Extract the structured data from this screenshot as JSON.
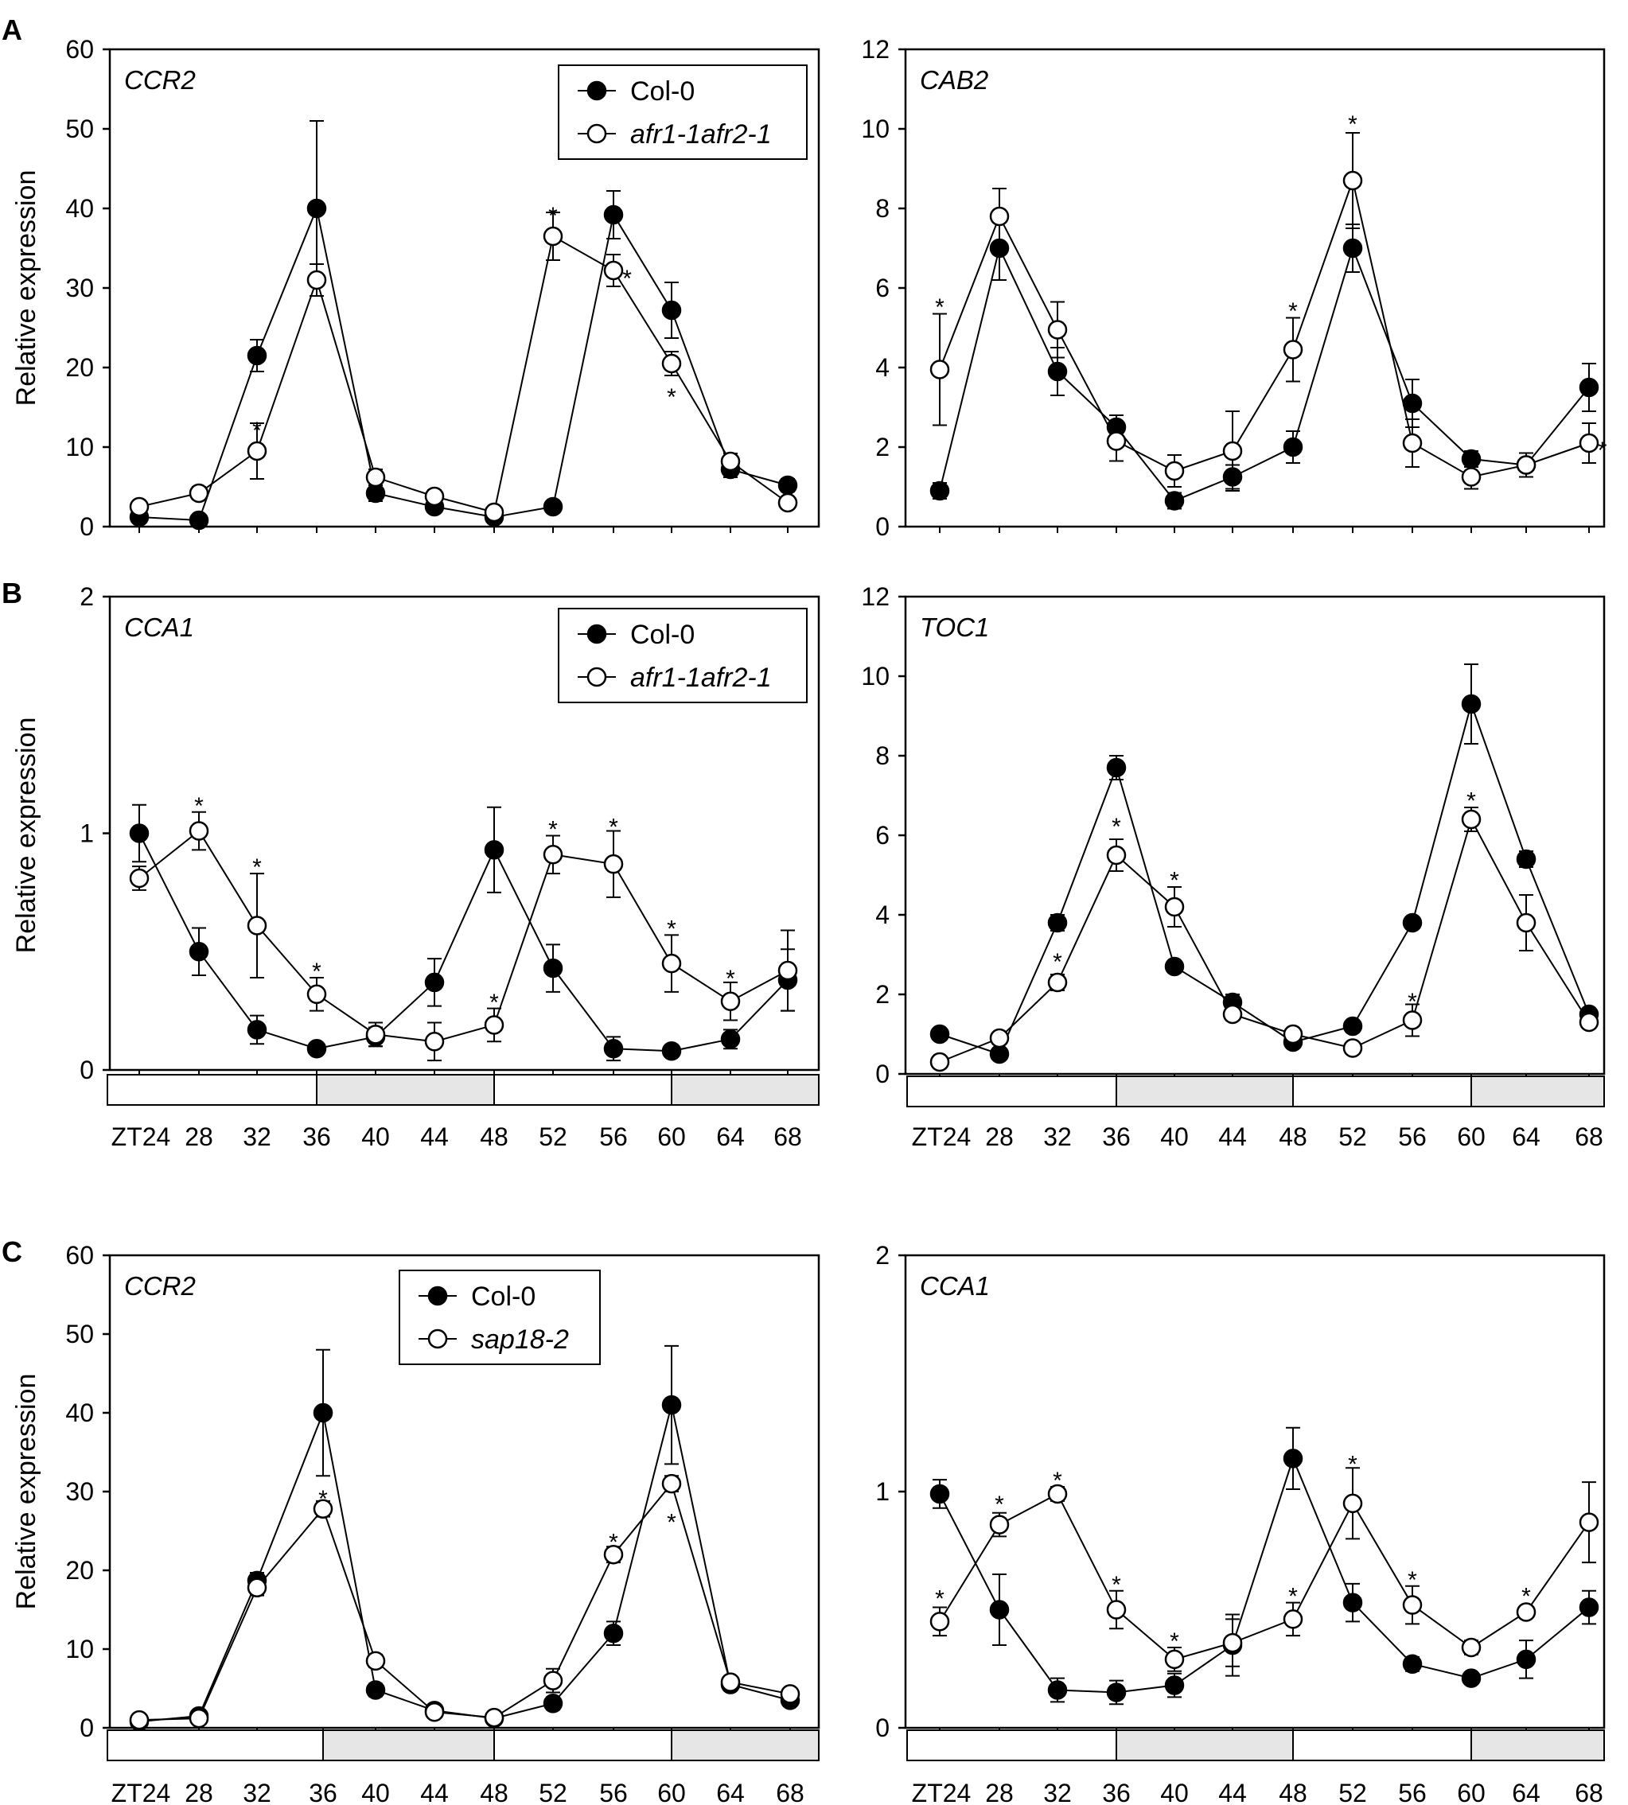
{
  "panel_labels": [
    "A",
    "B",
    "C"
  ],
  "ylabel": "Relative expression",
  "x_ticks": [
    "ZT24",
    "28",
    "32",
    "36",
    "40",
    "44",
    "48",
    "52",
    "56",
    "60",
    "64",
    "68"
  ],
  "legends": {
    "afr": [
      "Col-0",
      "afr1-1afr2-1"
    ],
    "sap": [
      "Col-0",
      "sap18-2"
    ]
  },
  "colors": {
    "filled": "#000000",
    "open": "#ffffff",
    "dark_period": "#e6e6e6",
    "light_period": "#ffffff"
  },
  "chart_data": [
    {
      "type": "line",
      "panel": "A",
      "title": "CCR2",
      "x": [
        24,
        28,
        32,
        36,
        40,
        44,
        48,
        52,
        56,
        60,
        64,
        68
      ],
      "ylim": [
        0,
        60
      ],
      "yticks": [
        0,
        10,
        20,
        30,
        40,
        50,
        60
      ],
      "xlabel": "",
      "ylabel": "Relative expression",
      "series": [
        {
          "name": "Col-0",
          "values": [
            1.2,
            0.8,
            21.5,
            40,
            4.2,
            2.5,
            1.2,
            2.5,
            39.2,
            27.2,
            7.2,
            5.2
          ],
          "errors": [
            0.5,
            0.4,
            2,
            11,
            1,
            0.6,
            0.5,
            0.6,
            3,
            3.5,
            1,
            0.8
          ]
        },
        {
          "name": "afr1-1afr2-1",
          "values": [
            2.5,
            4.2,
            9.5,
            31,
            6.2,
            3.8,
            1.8,
            36.5,
            32.2,
            20.5,
            8.2,
            3
          ],
          "errors": [
            0.6,
            0.8,
            3.5,
            2,
            1,
            0.8,
            0.5,
            3,
            2,
            1.5,
            1,
            0.6
          ]
        }
      ],
      "stars": [
        {
          "x": 32,
          "y": 12.5,
          "text": "*"
        },
        {
          "x": 52,
          "y": 39.5,
          "text": "*"
        },
        {
          "x": 57.1,
          "y": 31.6,
          "text": "*"
        },
        {
          "x": 60,
          "y": 16.7,
          "text": "*"
        }
      ]
    },
    {
      "type": "line",
      "panel": "A",
      "title": "CAB2",
      "x": [
        24,
        28,
        32,
        36,
        40,
        44,
        48,
        52,
        56,
        60,
        64,
        68
      ],
      "ylim": [
        0,
        12
      ],
      "yticks": [
        0,
        2,
        4,
        6,
        8,
        10,
        12
      ],
      "xlabel": "",
      "ylabel": "",
      "series": [
        {
          "name": "Col-0",
          "values": [
            0.9,
            7,
            3.9,
            2.5,
            0.65,
            1.25,
            2,
            7,
            3.1,
            1.7,
            1.55,
            3.5
          ],
          "errors": [
            0.2,
            0.8,
            0.6,
            0.3,
            0.2,
            0.3,
            0.4,
            0.6,
            0.6,
            0.2,
            0.3,
            0.6
          ]
        },
        {
          "name": "afr1-1afr2-1",
          "values": [
            3.95,
            7.8,
            4.95,
            2.15,
            1.4,
            1.9,
            4.45,
            8.7,
            2.1,
            1.25,
            1.55,
            2.1
          ],
          "errors": [
            1.4,
            0.7,
            0.7,
            0.5,
            0.4,
            1,
            0.8,
            1.2,
            0.6,
            0.3,
            0.3,
            0.5
          ]
        }
      ],
      "stars": [
        {
          "x": 24,
          "y": 5.6,
          "text": "*"
        },
        {
          "x": 48,
          "y": 5.5,
          "text": "*"
        },
        {
          "x": 52,
          "y": 10.2,
          "text": "*"
        },
        {
          "x": 68.9,
          "y": 2,
          "text": "*"
        }
      ]
    },
    {
      "type": "line",
      "panel": "B",
      "title": "CCA1",
      "x": [
        24,
        28,
        32,
        36,
        40,
        44,
        48,
        52,
        56,
        60,
        64,
        68
      ],
      "ylim": [
        0,
        2
      ],
      "yticks": [
        0,
        1,
        2
      ],
      "xlabel": "",
      "ylabel": "Relative expression",
      "series": [
        {
          "name": "Col-0",
          "values": [
            1,
            0.5,
            0.17,
            0.09,
            0.14,
            0.37,
            0.93,
            0.43,
            0.09,
            0.08,
            0.13,
            0.38
          ],
          "errors": [
            0.12,
            0.1,
            0.06,
            0.02,
            0.04,
            0.1,
            0.18,
            0.1,
            0.05,
            0.02,
            0.04,
            0.13
          ]
        },
        {
          "name": "afr1-1afr2-1",
          "values": [
            0.81,
            1.01,
            0.61,
            0.32,
            0.15,
            0.12,
            0.19,
            0.91,
            0.87,
            0.45,
            0.29,
            0.42
          ],
          "errors": [
            0.05,
            0.08,
            0.22,
            0.07,
            0.05,
            0.08,
            0.07,
            0.08,
            0.14,
            0.12,
            0.08,
            0.17
          ]
        }
      ],
      "stars": [
        {
          "x": 28,
          "y": 1.13,
          "text": "*"
        },
        {
          "x": 32,
          "y": 0.87,
          "text": "*"
        },
        {
          "x": 36,
          "y": 0.43,
          "text": "*"
        },
        {
          "x": 48,
          "y": 0.3,
          "text": "*"
        },
        {
          "x": 52,
          "y": 1.03,
          "text": "*"
        },
        {
          "x": 56,
          "y": 1.04,
          "text": "*"
        },
        {
          "x": 60,
          "y": 0.61,
          "text": "*"
        },
        {
          "x": 64,
          "y": 0.4,
          "text": "*"
        }
      ]
    },
    {
      "type": "line",
      "panel": "B",
      "title": "TOC1",
      "x": [
        24,
        28,
        32,
        36,
        40,
        44,
        48,
        52,
        56,
        60,
        64,
        68
      ],
      "ylim": [
        0,
        12
      ],
      "yticks": [
        0,
        2,
        4,
        6,
        8,
        10,
        12
      ],
      "xlabel": "",
      "ylabel": "",
      "series": [
        {
          "name": "Col-0",
          "values": [
            1,
            0.5,
            3.8,
            7.7,
            2.7,
            1.8,
            0.8,
            1.2,
            3.8,
            9.3,
            5.4,
            1.5
          ],
          "errors": [
            0.1,
            0.1,
            0.2,
            0.3,
            0.15,
            0.2,
            0.1,
            0.15,
            0.15,
            1,
            0.2,
            0.15
          ]
        },
        {
          "name": "afr1-1afr2-1",
          "values": [
            0.3,
            0.9,
            2.3,
            5.5,
            4.2,
            1.5,
            1,
            0.65,
            1.35,
            6.4,
            3.8,
            1.3
          ],
          "errors": [
            0.1,
            0.15,
            0.2,
            0.4,
            0.5,
            0.15,
            0.15,
            0.1,
            0.4,
            0.3,
            0.7,
            0.15
          ]
        }
      ],
      "stars": [
        {
          "x": 32,
          "y": 2.9,
          "text": "*"
        },
        {
          "x": 36,
          "y": 6.3,
          "text": "*"
        },
        {
          "x": 40,
          "y": 4.95,
          "text": "*"
        },
        {
          "x": 56,
          "y": 1.9,
          "text": "*"
        },
        {
          "x": 60,
          "y": 6.95,
          "text": "*"
        }
      ]
    },
    {
      "type": "line",
      "panel": "C",
      "title": "CCR2",
      "x": [
        24,
        28,
        32,
        36,
        40,
        44,
        48,
        52,
        56,
        60,
        64,
        68
      ],
      "ylim": [
        0,
        60
      ],
      "yticks": [
        0,
        10,
        20,
        30,
        40,
        50,
        60
      ],
      "xlabel": "",
      "ylabel": "Relative expression",
      "series": [
        {
          "name": "Col-0",
          "values": [
            0.8,
            1.5,
            18.7,
            40,
            4.8,
            2.2,
            1.2,
            3.1,
            12,
            41,
            5.5,
            3.5
          ],
          "errors": [
            0.3,
            0.4,
            1,
            8,
            0.8,
            0.4,
            0.3,
            0.8,
            1.5,
            7.5,
            0.5,
            0.6
          ]
        },
        {
          "name": "sap18-2",
          "values": [
            1,
            1.2,
            17.8,
            27.8,
            8.5,
            2,
            1.3,
            6,
            22,
            31,
            5.8,
            4.3
          ],
          "errors": [
            0.3,
            0.3,
            1,
            1,
            0.8,
            0.3,
            0.2,
            1.5,
            1,
            1,
            0.5,
            0.5
          ]
        }
      ],
      "stars": [
        {
          "x": 36,
          "y": 29.5,
          "text": "*"
        },
        {
          "x": 56,
          "y": 24,
          "text": "*"
        },
        {
          "x": 60,
          "y": 26.5,
          "text": "*"
        }
      ]
    },
    {
      "type": "line",
      "panel": "C",
      "title": "CCA1",
      "x": [
        24,
        28,
        32,
        36,
        40,
        44,
        48,
        52,
        56,
        60,
        64,
        68
      ],
      "ylim": [
        0,
        2
      ],
      "yticks": [
        0,
        1,
        2
      ],
      "xlabel": "",
      "ylabel": "",
      "series": [
        {
          "name": "Col-0",
          "values": [
            0.99,
            0.5,
            0.16,
            0.15,
            0.18,
            0.35,
            1.14,
            0.53,
            0.27,
            0.21,
            0.29,
            0.51
          ],
          "errors": [
            0.06,
            0.15,
            0.05,
            0.05,
            0.05,
            0.13,
            0.13,
            0.08,
            0.03,
            0.02,
            0.08,
            0.07
          ]
        },
        {
          "name": "sap18-2",
          "values": [
            0.45,
            0.86,
            0.99,
            0.5,
            0.29,
            0.36,
            0.46,
            0.95,
            0.52,
            0.34,
            0.49,
            0.87
          ],
          "errors": [
            0.06,
            0.05,
            0.03,
            0.08,
            0.05,
            0.1,
            0.07,
            0.15,
            0.08,
            0.03,
            0.02,
            0.17
          ]
        }
      ],
      "stars": [
        {
          "x": 24,
          "y": 0.56,
          "text": "*"
        },
        {
          "x": 28,
          "y": 0.96,
          "text": "*"
        },
        {
          "x": 32,
          "y": 1.06,
          "text": "*"
        },
        {
          "x": 36,
          "y": 0.62,
          "text": "*"
        },
        {
          "x": 40,
          "y": 0.38,
          "text": "*"
        },
        {
          "x": 48,
          "y": 0.57,
          "text": "*"
        },
        {
          "x": 52,
          "y": 1.13,
          "text": "*"
        },
        {
          "x": 56,
          "y": 0.64,
          "text": "*"
        },
        {
          "x": 64,
          "y": 0.57,
          "text": "*"
        }
      ]
    }
  ]
}
